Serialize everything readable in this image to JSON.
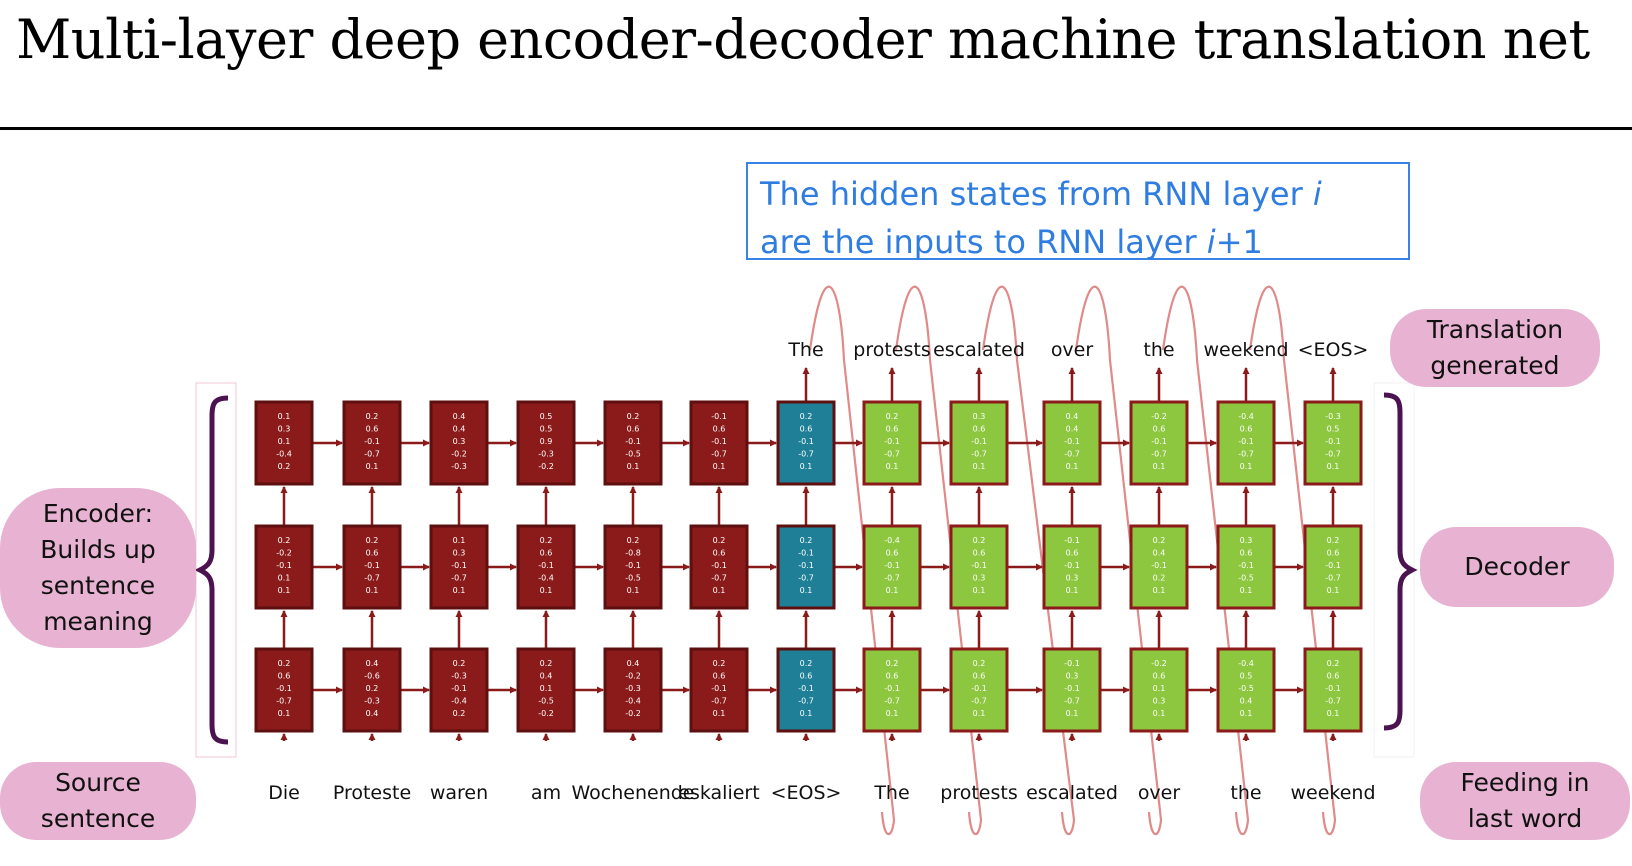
{
  "title": "Multi-layer deep encoder-decoder machine translation net",
  "callout": {
    "line1_prefix": "The hidden states from RNN layer ",
    "line1_var": "i",
    "line2_prefix": "are the inputs to RNN layer ",
    "line2_var": "i",
    "line2_suffix": "+1"
  },
  "labels": {
    "translation": [
      "Translation",
      "generated"
    ],
    "encoder": [
      "Encoder:",
      "Builds up",
      "sentence",
      "meaning"
    ],
    "decoder": [
      "Decoder"
    ],
    "source": [
      "Source",
      "sentence"
    ],
    "feeding": [
      "Feeding in",
      "last word"
    ]
  },
  "source_words": [
    "Die",
    "Proteste",
    "waren",
    "am",
    "Wochenende",
    "eskaliert",
    "<EOS>",
    "The",
    "protests",
    "escalated",
    "over",
    "the",
    "weekend"
  ],
  "output_words": [
    "The",
    "protests",
    "escalated",
    "over",
    "the",
    "weekend",
    "<EOS>"
  ],
  "colors": {
    "encoder_fill": "#8b1a1a",
    "encoder_stroke": "#5e0f0f",
    "bridge_fill": "#1f7f96",
    "decoder_fill": "#8dc63f",
    "decoder_stroke": "#8b1a1a",
    "arrow": "#8b1a1a",
    "loop": "#e08a8a",
    "bracket": "#4b1450",
    "callout": "#2f7de0",
    "pill": "#e8b3d2"
  },
  "grid": {
    "top_layer": [
      [
        "0.1",
        "0.3",
        "0.1",
        "-0.4",
        "0.2"
      ],
      [
        "0.2",
        "0.6",
        "-0.1",
        "-0.7",
        "0.1"
      ],
      [
        "0.4",
        "0.4",
        "0.3",
        "-0.2",
        "-0.3"
      ],
      [
        "0.5",
        "0.5",
        "0.9",
        "-0.3",
        "-0.2"
      ],
      [
        "0.2",
        "0.6",
        "-0.1",
        "-0.5",
        "0.1"
      ],
      [
        "-0.1",
        "0.6",
        "-0.1",
        "-0.7",
        "0.1"
      ],
      [
        "0.2",
        "0.6",
        "-0.1",
        "-0.7",
        "0.1"
      ],
      [
        "0.2",
        "0.6",
        "-0.1",
        "-0.7",
        "0.1"
      ],
      [
        "0.3",
        "0.6",
        "-0.1",
        "-0.7",
        "0.1"
      ],
      [
        "0.4",
        "0.4",
        "-0.1",
        "-0.7",
        "0.1"
      ],
      [
        "-0.2",
        "0.6",
        "-0.1",
        "-0.7",
        "0.1"
      ],
      [
        "-0.4",
        "0.6",
        "-0.1",
        "-0.7",
        "0.1"
      ],
      [
        "-0.3",
        "0.5",
        "-0.1",
        "-0.7",
        "0.1"
      ]
    ],
    "middle_layer": [
      [
        "0.2",
        "-0.2",
        "-0.1",
        "0.1",
        "0.1"
      ],
      [
        "0.2",
        "0.6",
        "-0.1",
        "-0.7",
        "0.1"
      ],
      [
        "0.1",
        "0.3",
        "-0.1",
        "-0.7",
        "0.1"
      ],
      [
        "0.2",
        "0.6",
        "-0.1",
        "-0.4",
        "0.1"
      ],
      [
        "0.2",
        "-0.8",
        "-0.1",
        "-0.5",
        "0.1"
      ],
      [
        "0.2",
        "0.6",
        "-0.1",
        "-0.7",
        "0.1"
      ],
      [
        "0.2",
        "-0.1",
        "-0.1",
        "-0.7",
        "0.1"
      ],
      [
        "-0.4",
        "0.6",
        "-0.1",
        "-0.7",
        "0.1"
      ],
      [
        "0.2",
        "0.6",
        "-0.1",
        "0.3",
        "0.1"
      ],
      [
        "-0.1",
        "0.6",
        "-0.1",
        "0.3",
        "0.1"
      ],
      [
        "0.2",
        "0.4",
        "-0.1",
        "0.2",
        "0.1"
      ],
      [
        "0.3",
        "0.6",
        "-0.1",
        "-0.5",
        "0.1"
      ],
      [
        "0.2",
        "0.6",
        "-0.1",
        "-0.7",
        "0.1"
      ]
    ],
    "bottom_layer": [
      [
        "0.2",
        "0.6",
        "-0.1",
        "-0.7",
        "0.1"
      ],
      [
        "0.4",
        "-0.6",
        "0.2",
        "-0.3",
        "0.4"
      ],
      [
        "0.2",
        "-0.3",
        "-0.1",
        "-0.4",
        "0.2"
      ],
      [
        "0.2",
        "0.4",
        "0.1",
        "-0.5",
        "-0.2"
      ],
      [
        "0.4",
        "-0.2",
        "-0.3",
        "-0.4",
        "-0.2"
      ],
      [
        "0.2",
        "0.6",
        "-0.1",
        "-0.7",
        "0.1"
      ],
      [
        "0.2",
        "0.6",
        "-0.1",
        "-0.7",
        "0.1"
      ],
      [
        "0.2",
        "0.6",
        "-0.1",
        "-0.7",
        "0.1"
      ],
      [
        "0.2",
        "0.6",
        "-0.1",
        "-0.7",
        "0.1"
      ],
      [
        "-0.1",
        "0.3",
        "-0.1",
        "-0.7",
        "0.1"
      ],
      [
        "-0.2",
        "0.6",
        "0.1",
        "0.3",
        "0.1"
      ],
      [
        "-0.4",
        "0.5",
        "-0.5",
        "0.4",
        "0.1"
      ],
      [
        "0.2",
        "0.6",
        "-0.1",
        "-0.7",
        "0.1"
      ]
    ]
  }
}
